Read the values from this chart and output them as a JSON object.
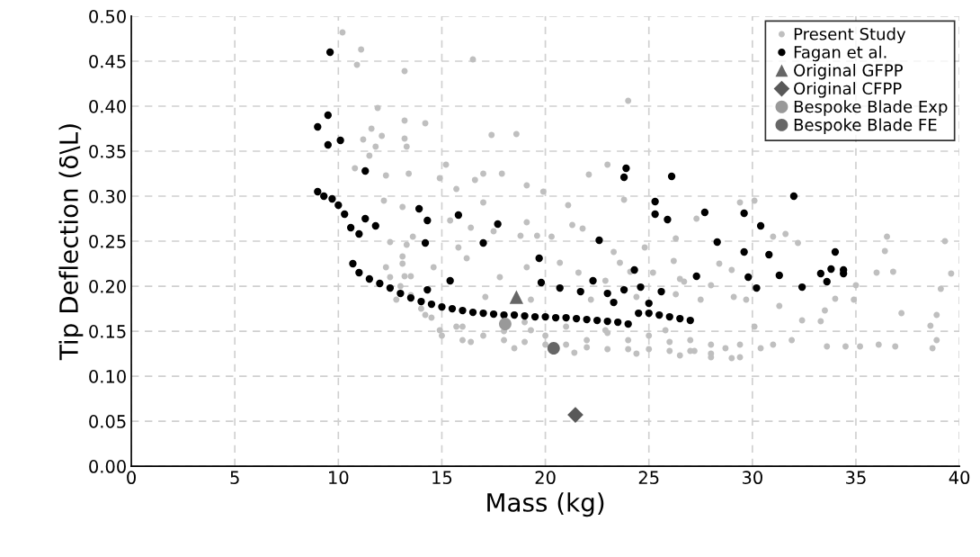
{
  "chart_data": {
    "type": "scatter",
    "xlabel": "Mass (kg)",
    "ylabel": "Tip Deflection (δ\\L)",
    "xlim": [
      0,
      40
    ],
    "ylim": [
      0,
      0.5
    ],
    "xticks": [
      0,
      5,
      10,
      15,
      20,
      25,
      30,
      35,
      40
    ],
    "yticks": [
      {
        "value": 0,
        "label": "0.00"
      },
      {
        "value": 0.05,
        "label": "0.05"
      },
      {
        "value": 0.1,
        "label": "0.10"
      },
      {
        "value": 0.15,
        "label": "0.15"
      },
      {
        "value": 0.2,
        "label": "0.20"
      },
      {
        "value": 0.25,
        "label": "0.25"
      },
      {
        "value": 0.3,
        "label": "0.30"
      },
      {
        "value": 0.35,
        "label": "0.35"
      },
      {
        "value": 0.4,
        "label": "0.40"
      },
      {
        "value": 0.45,
        "label": "0.45"
      },
      {
        "value": 0.5,
        "label": "0.50"
      }
    ],
    "grid": true,
    "legend": "top right",
    "series": [
      {
        "name": "Present Study",
        "color": "#bfbfbf",
        "marker": "circle",
        "x": [
          10.2,
          11.1,
          10.9,
          13.2,
          11.9,
          13.2,
          11.6,
          12.1,
          11.2,
          11.8,
          13.2,
          13.3,
          11.5,
          10.8,
          12.3,
          13.4,
          12.2,
          13.1,
          12.5,
          13.3,
          13.1,
          12.3,
          13.2,
          16.5,
          17.4,
          14.2,
          18.6,
          24.0,
          15.2,
          14.9,
          15.7,
          16.6,
          17.0,
          17.9,
          19.1,
          19.9,
          22.1,
          23.0,
          21.1,
          23.8,
          19.1,
          17.0,
          16.4,
          15.4,
          15.8,
          17.5,
          18.8,
          20.3,
          19.6,
          21.8,
          21.3,
          23.3,
          23.6,
          24.8,
          26.3,
          13.6,
          13.1,
          14.6,
          16.2,
          17.8,
          19.1,
          20.7,
          21.6,
          22.9,
          24.1,
          25.2,
          26.5,
          17.1,
          19.3,
          22.2,
          24.4,
          14.2,
          15.7,
          19.3,
          22.9,
          25.8,
          12.8,
          13.5,
          14.9,
          16.4,
          18.5,
          21.4,
          24.4,
          26.5,
          15,
          16,
          17,
          18,
          19,
          20,
          21,
          22,
          23,
          24,
          25,
          26,
          27,
          28,
          16,
          18,
          20,
          22,
          24,
          26,
          28,
          14.5,
          14.0,
          13.5,
          13.0,
          12.5,
          19,
          21,
          23,
          25,
          27,
          28.0,
          29.0,
          39.3,
          39.6,
          36.5,
          36.4,
          36.8,
          36.0,
          39.1,
          38.9,
          38.6,
          38.9,
          38.7,
          37.2,
          36.9,
          36.1,
          35.2,
          34.5,
          33.6,
          35.0,
          34.9,
          34.0,
          33.5,
          33.3,
          32.4,
          31.9,
          31.0,
          30.4,
          30.1,
          31.3,
          32.2,
          31.6,
          31.0,
          30.1,
          29.4,
          27.3,
          28.4,
          29.0,
          29.7,
          29.1,
          28.0,
          27.5,
          26.7,
          26.3,
          26.2,
          29.4,
          27.2,
          28.7,
          29.4
        ],
        "values": [
          0.482,
          0.463,
          0.446,
          0.439,
          0.398,
          0.384,
          0.375,
          0.367,
          0.363,
          0.355,
          0.364,
          0.355,
          0.345,
          0.331,
          0.323,
          0.325,
          0.295,
          0.288,
          0.249,
          0.246,
          0.233,
          0.221,
          0.211,
          0.452,
          0.368,
          0.381,
          0.369,
          0.406,
          0.335,
          0.32,
          0.308,
          0.318,
          0.325,
          0.325,
          0.312,
          0.305,
          0.324,
          0.335,
          0.29,
          0.296,
          0.271,
          0.293,
          0.265,
          0.273,
          0.243,
          0.261,
          0.256,
          0.255,
          0.256,
          0.264,
          0.268,
          0.238,
          0.226,
          0.243,
          0.253,
          0.255,
          0.225,
          0.221,
          0.231,
          0.21,
          0.221,
          0.226,
          0.215,
          0.206,
          0.216,
          0.215,
          0.208,
          0.188,
          0.185,
          0.185,
          0.188,
          0.168,
          0.155,
          0.151,
          0.151,
          0.151,
          0.185,
          0.211,
          0.151,
          0.138,
          0.131,
          0.126,
          0.125,
          0.123,
          0.145,
          0.14,
          0.145,
          0.14,
          0.138,
          0.135,
          0.135,
          0.132,
          0.13,
          0.13,
          0.13,
          0.128,
          0.128,
          0.125,
          0.155,
          0.15,
          0.145,
          0.14,
          0.14,
          0.138,
          0.135,
          0.165,
          0.175,
          0.19,
          0.2,
          0.21,
          0.16,
          0.155,
          0.148,
          0.145,
          0.14,
          0.121,
          0.12,
          0.25,
          0.214,
          0.255,
          0.239,
          0.216,
          0.215,
          0.197,
          0.168,
          0.156,
          0.14,
          0.131,
          0.17,
          0.133,
          0.135,
          0.133,
          0.133,
          0.133,
          0.201,
          0.185,
          0.186,
          0.173,
          0.161,
          0.162,
          0.14,
          0.135,
          0.131,
          0.155,
          0.178,
          0.248,
          0.258,
          0.255,
          0.295,
          0.293,
          0.275,
          0.225,
          0.218,
          0.185,
          0.188,
          0.201,
          0.185,
          0.205,
          0.191,
          0.228,
          0.135,
          0.128,
          0.131,
          0.121
        ]
      },
      {
        "name": "Fagan et al.",
        "color": "#000000",
        "marker": "circle",
        "x": [
          9.0,
          9.3,
          9.7,
          10.0,
          10.3,
          10.6,
          11.0,
          10.7,
          11.0,
          11.5,
          12,
          12.5,
          13,
          13.5,
          14,
          14.5,
          15,
          15.5,
          16,
          16.5,
          17,
          17.5,
          18,
          18.5,
          19,
          19.5,
          20,
          20.5,
          21,
          21.5,
          22,
          22.5,
          23,
          23.5,
          24,
          24.5,
          25,
          25.5,
          26,
          26.5,
          27,
          9.6,
          9.0,
          9.5,
          9.5,
          10.1,
          11.3,
          11.8,
          11.3,
          13.9,
          14.3,
          15.8,
          14.2,
          17.0,
          17.7,
          19.7,
          22.6,
          23.8,
          23.9,
          26.1,
          25.3,
          25.3,
          25.9,
          15.4,
          14.3,
          19.8,
          20.7,
          21.7,
          22.3,
          23.0,
          23.8,
          24.3,
          24.6,
          25.6,
          25.0,
          23.3,
          27.7,
          29.6,
          30.4,
          28.3,
          29.6,
          30.8,
          32.0,
          27.3,
          29.8,
          30.2,
          31.3,
          32.4,
          33.3,
          33.6,
          33.8,
          34.0,
          34.4,
          34.4
        ],
        "values": [
          0.305,
          0.3,
          0.297,
          0.29,
          0.28,
          0.265,
          0.258,
          0.225,
          0.215,
          0.208,
          0.203,
          0.198,
          0.192,
          0.187,
          0.183,
          0.18,
          0.177,
          0.175,
          0.173,
          0.171,
          0.17,
          0.169,
          0.168,
          0.168,
          0.167,
          0.166,
          0.166,
          0.165,
          0.165,
          0.164,
          0.163,
          0.162,
          0.161,
          0.16,
          0.158,
          0.17,
          0.17,
          0.168,
          0.166,
          0.164,
          0.162,
          0.46,
          0.377,
          0.39,
          0.357,
          0.362,
          0.328,
          0.267,
          0.275,
          0.286,
          0.273,
          0.279,
          0.248,
          0.248,
          0.269,
          0.231,
          0.251,
          0.321,
          0.331,
          0.322,
          0.294,
          0.28,
          0.274,
          0.206,
          0.196,
          0.204,
          0.198,
          0.194,
          0.206,
          0.192,
          0.196,
          0.218,
          0.199,
          0.194,
          0.181,
          0.182,
          0.282,
          0.281,
          0.267,
          0.249,
          0.238,
          0.235,
          0.3,
          0.211,
          0.21,
          0.198,
          0.212,
          0.199,
          0.214,
          0.205,
          0.219,
          0.238,
          0.218,
          0.214
        ]
      },
      {
        "name": "Original GFPP",
        "color": "#666666",
        "marker": "triangle",
        "x": [
          18.6
        ],
        "values": [
          0.188
        ]
      },
      {
        "name": "Original CFPP",
        "color": "#595959",
        "marker": "diamond",
        "x": [
          21.45
        ],
        "values": [
          0.057
        ]
      },
      {
        "name": "Bespoke Blade Exp",
        "color": "#999999",
        "marker": "circle",
        "x": [
          18.06
        ],
        "values": [
          0.158
        ]
      },
      {
        "name": "Bespoke Blade FE",
        "color": "#666666",
        "marker": "circle",
        "x": [
          20.4
        ],
        "values": [
          0.131
        ]
      }
    ]
  }
}
